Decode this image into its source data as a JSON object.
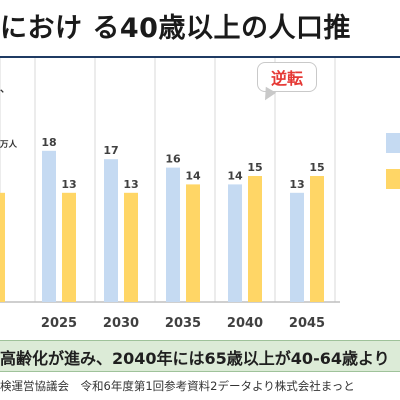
{
  "title": "におけ る40歳以上の人口推",
  "callout": "逆転",
  "unit": "万人",
  "tick_fragment": "、",
  "footer": "高齢化が進み、2040年には65歳以上が40-64歳より",
  "source": "検運営協議会　令和6年度第1回参考資料2データより株式会社まっと",
  "colors": {
    "series_blue": "#c5daf2",
    "series_yellow": "#ffd666",
    "footer_bg": "#dcebd7",
    "callout_text": "#e53935"
  },
  "chart_data": {
    "type": "bar",
    "categories": [
      "2025",
      "2030",
      "2035",
      "2040",
      "2045"
    ],
    "series": [
      {
        "values": [
          18,
          17,
          16,
          14,
          13
        ],
        "color": "#c5daf2"
      },
      {
        "values": [
          13,
          13,
          14,
          15,
          15
        ],
        "color": "#ffd666"
      }
    ],
    "ylim": [
      0,
      20
    ],
    "grid": true,
    "legend": "right"
  }
}
